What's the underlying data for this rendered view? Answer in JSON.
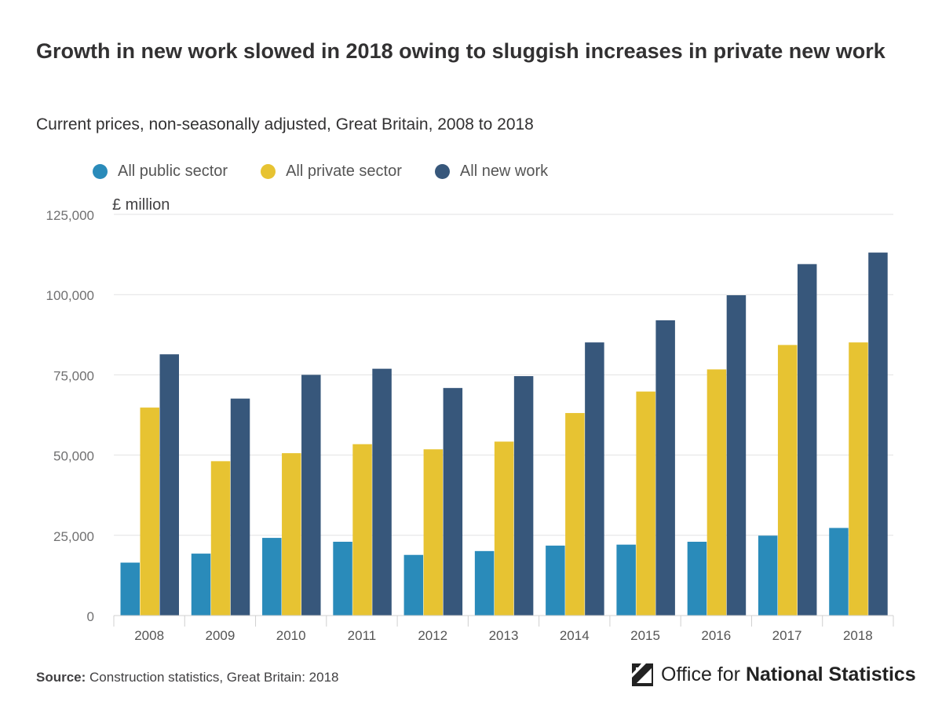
{
  "header": {
    "title": "Growth in new work slowed in 2018 owing to sluggish increases in private new work",
    "subtitle": "Current prices, non-seasonally adjusted, Great Britain, 2008 to 2018"
  },
  "legend": [
    {
      "label": "All public sector",
      "color": "#2a8bba"
    },
    {
      "label": "All private sector",
      "color": "#e7c332"
    },
    {
      "label": "All new work",
      "color": "#37577b"
    }
  ],
  "chart_data": {
    "type": "bar",
    "title": "Growth in new work slowed in 2018 owing to sluggish increases in private new work",
    "ylabel": "£ million",
    "xlabel": "",
    "ylim": [
      0,
      125000
    ],
    "yticks": [
      0,
      25000,
      50000,
      75000,
      100000,
      125000
    ],
    "ytick_labels": [
      "0",
      "25,000",
      "50,000",
      "75,000",
      "100,000",
      "125,000"
    ],
    "categories": [
      "2008",
      "2009",
      "2010",
      "2011",
      "2012",
      "2013",
      "2014",
      "2015",
      "2016",
      "2017",
      "2018"
    ],
    "series": [
      {
        "name": "All public sector",
        "color": "#2a8bba",
        "values": [
          16500,
          19300,
          24200,
          23000,
          18900,
          20100,
          21800,
          22100,
          23000,
          24900,
          27300
        ]
      },
      {
        "name": "All private sector",
        "color": "#e7c332",
        "values": [
          64800,
          48100,
          50600,
          53400,
          51800,
          54200,
          63100,
          69800,
          76700,
          84300,
          85100
        ]
      },
      {
        "name": "All new work",
        "color": "#37577b",
        "values": [
          81400,
          67600,
          75000,
          76900,
          70900,
          74600,
          85100,
          92000,
          99800,
          109500,
          113100
        ]
      }
    ],
    "grid": true,
    "legend_position": "top-left"
  },
  "footer": {
    "source_label": "Source:",
    "source_text": " Construction statistics, Great Britain: 2018",
    "logo_light": "Office for",
    "logo_bold": "National Statistics"
  }
}
